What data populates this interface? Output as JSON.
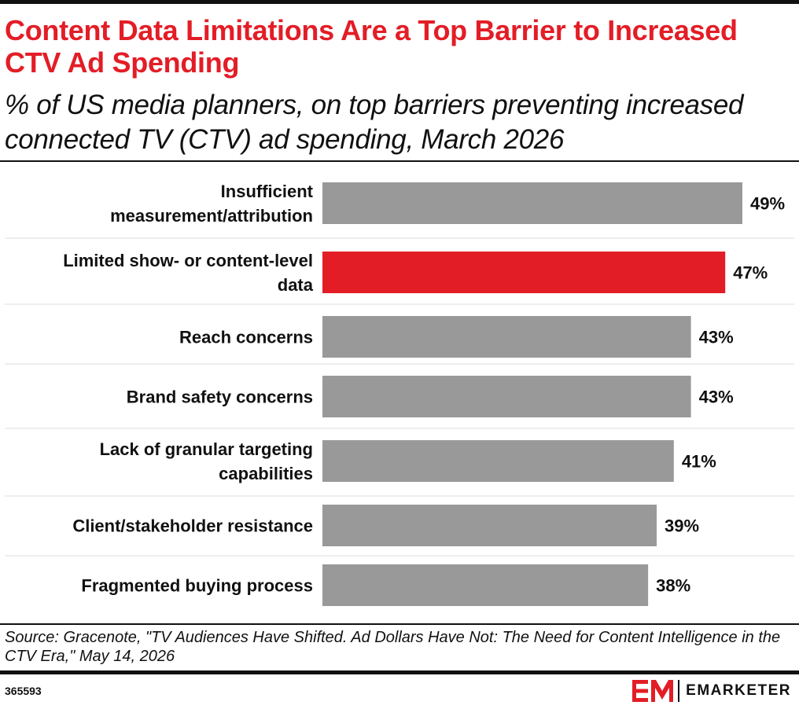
{
  "header": {
    "title": "Content Data Limitations Are a Top Barrier to Increased CTV Ad Spending",
    "subtitle": "% of US media planners, on top barriers preventing increased connected TV (CTV) ad spending, March 2026"
  },
  "chart_data": {
    "type": "bar",
    "orientation": "horizontal",
    "categories": [
      [
        "Insufficient",
        "measurement/attribution"
      ],
      [
        "Limited show- or content-level",
        "data"
      ],
      [
        "Reach concerns"
      ],
      [
        "Brand safety concerns"
      ],
      [
        "Lack of granular targeting",
        "capabilities"
      ],
      [
        "Client/stakeholder resistance"
      ],
      [
        "Fragmented buying process"
      ]
    ],
    "values": [
      49,
      47,
      43,
      43,
      41,
      39,
      38
    ],
    "value_labels": [
      "49%",
      "47%",
      "43%",
      "43%",
      "41%",
      "39%",
      "38%"
    ],
    "highlight_index": 1,
    "colors": {
      "bar": "#999999",
      "highlight": "#e31d26",
      "separator": "#dddddd"
    },
    "xlim": [
      0,
      49
    ],
    "grid": false,
    "legend": "none"
  },
  "footer": {
    "source": "Source: Gracenote, \"TV Audiences Have Shifted. Ad Dollars Have Not: The Need for Content Intelligence in the CTV Era,\" May 14, 2026",
    "chart_id": "365593",
    "brand": "EMARKETER",
    "brand_color": "#e31d26"
  }
}
